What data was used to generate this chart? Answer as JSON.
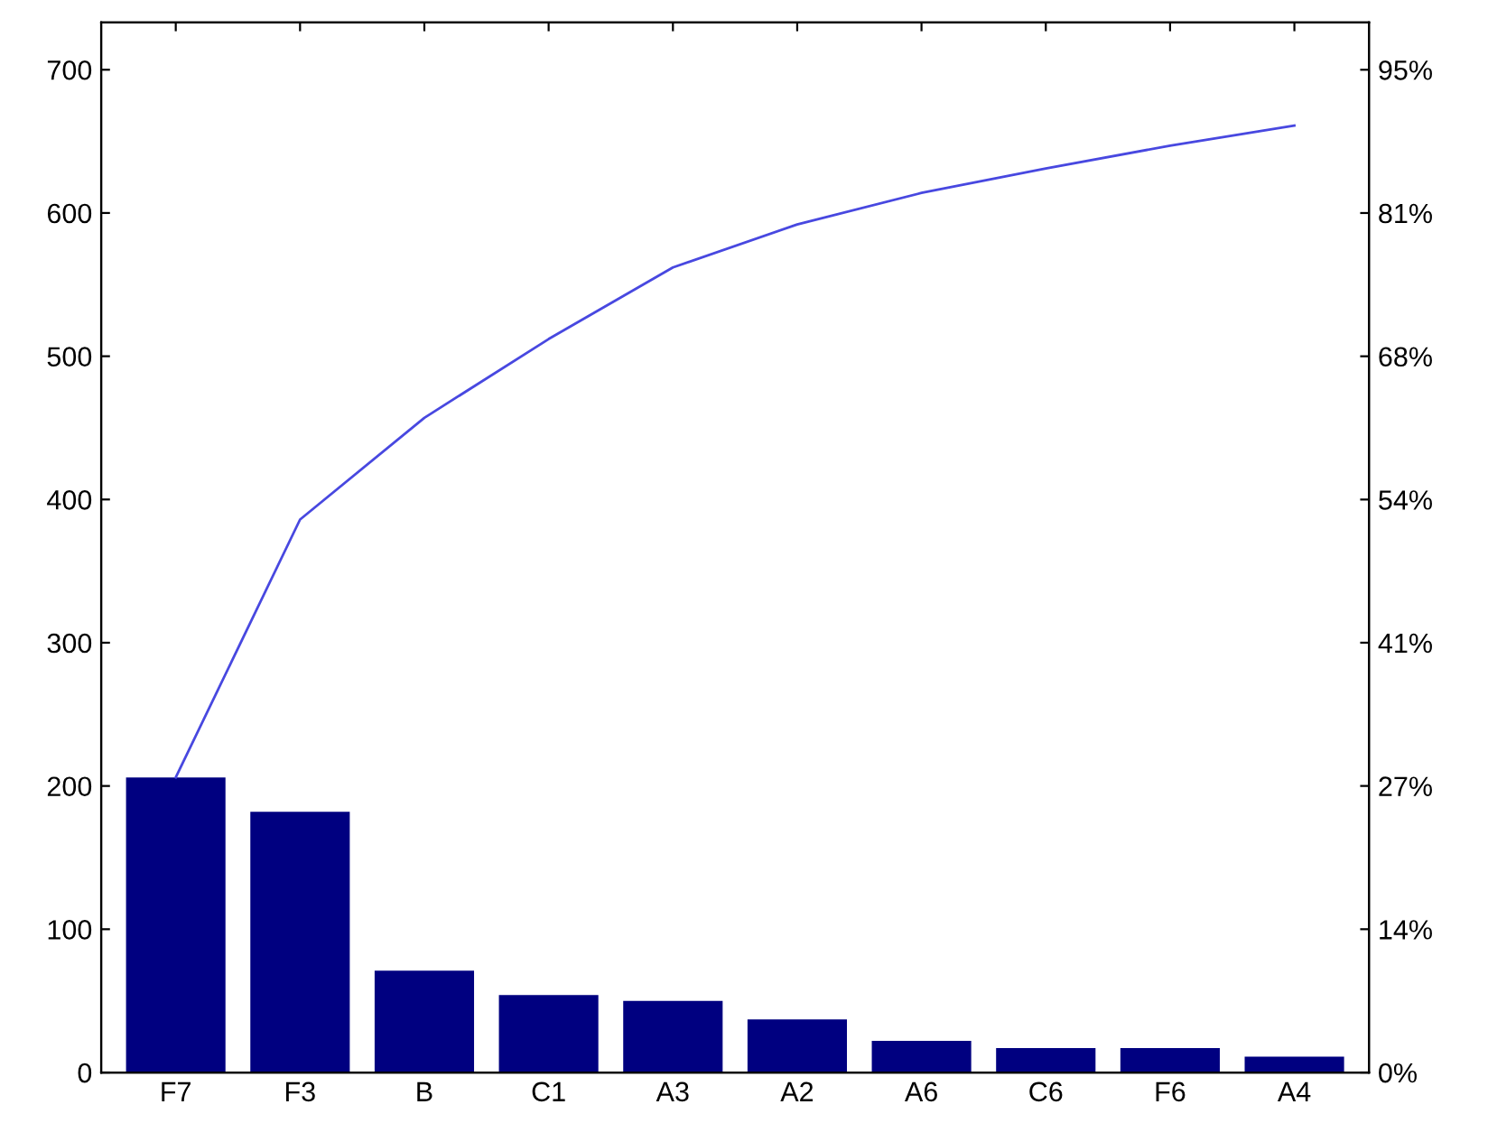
{
  "chart_data": {
    "type": "bar",
    "categories": [
      "F7",
      "F3",
      "B",
      "C1",
      "A3",
      "A2",
      "A6",
      "C6",
      "F6",
      "A4"
    ],
    "series": [
      {
        "color": "#000080",
        "values": [
          206,
          182,
          71,
          54,
          50,
          37,
          22,
          17,
          17,
          11
        ]
      },
      {
        "type": "line",
        "color": "#4848e0",
        "values": [
          206,
          386,
          457,
          512,
          562,
          592,
          614,
          631,
          647,
          661
        ]
      }
    ],
    "ylim": [
      0,
      733
    ],
    "yticks": [
      0,
      100,
      200,
      300,
      400,
      500,
      600,
      700
    ],
    "y2lim": [
      0,
      99.46
    ],
    "y2ticks": [
      {
        "value": 0,
        "label": "0%"
      },
      {
        "value": 13.57,
        "label": "14%"
      },
      {
        "value": 27.14,
        "label": "27%"
      },
      {
        "value": 40.71,
        "label": "41%"
      },
      {
        "value": 54.27,
        "label": "54%"
      },
      {
        "value": 67.84,
        "label": "68%"
      },
      {
        "value": 81.41,
        "label": "81%"
      },
      {
        "value": 94.98,
        "label": "95%"
      }
    ],
    "marker": "none",
    "line_style": "solid"
  }
}
